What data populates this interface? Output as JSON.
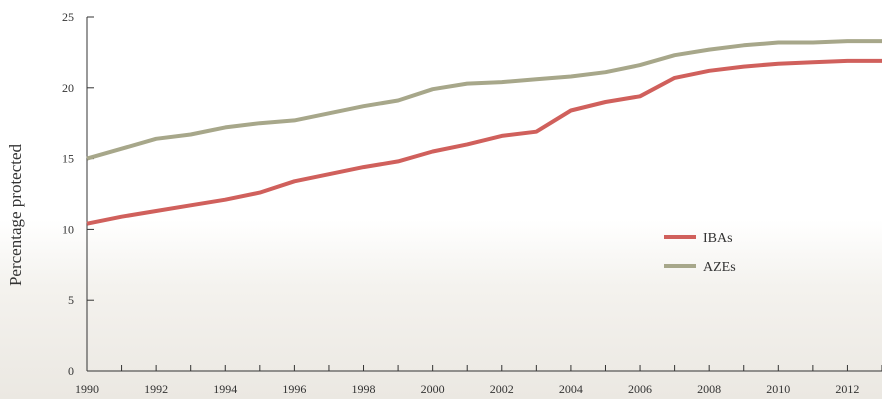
{
  "chart_data": {
    "type": "line",
    "title": "",
    "xlabel": "",
    "ylabel": "Percentage protected",
    "xlim": [
      1990,
      2013
    ],
    "ylim": [
      0,
      25
    ],
    "y_ticks": [
      0,
      5,
      10,
      15,
      20,
      25
    ],
    "x_tick_labels": [
      "1990",
      "1992",
      "1994",
      "1996",
      "1998",
      "2000",
      "2002",
      "2004",
      "2006",
      "2008",
      "2010",
      "2012"
    ],
    "grid": false,
    "legend_position": "right",
    "x": [
      1990,
      1991,
      1992,
      1993,
      1994,
      1995,
      1996,
      1997,
      1998,
      1999,
      2000,
      2001,
      2002,
      2003,
      2004,
      2005,
      2006,
      2007,
      2008,
      2009,
      2010,
      2011,
      2012,
      2013
    ],
    "series": [
      {
        "name": "IBAs",
        "color": "#d0605c",
        "values": [
          10.4,
          10.9,
          11.3,
          11.7,
          12.1,
          12.6,
          13.4,
          13.9,
          14.4,
          14.8,
          15.5,
          16.0,
          16.6,
          16.9,
          18.4,
          19.0,
          19.4,
          20.7,
          21.2,
          21.5,
          21.7,
          21.8,
          21.9,
          21.9
        ]
      },
      {
        "name": "AZEs",
        "color": "#a7a78a",
        "values": [
          15.0,
          15.7,
          16.4,
          16.7,
          17.2,
          17.5,
          17.7,
          18.2,
          18.7,
          19.1,
          19.9,
          20.3,
          20.4,
          20.6,
          20.8,
          21.1,
          21.6,
          22.3,
          22.7,
          23.0,
          23.2,
          23.2,
          23.3,
          23.3
        ]
      }
    ]
  }
}
